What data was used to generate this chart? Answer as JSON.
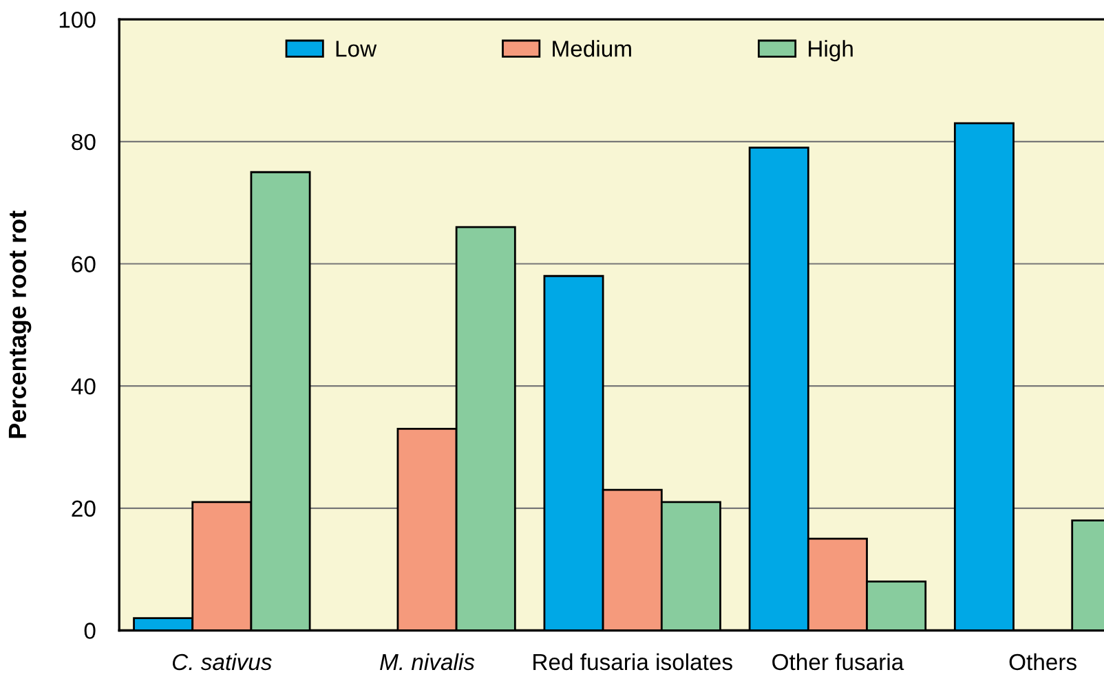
{
  "chart_data": {
    "type": "bar",
    "ylabel": "Percentage root rot",
    "categories": [
      "C. sativus",
      "M. nivalis",
      "Red fusaria isolates",
      "Other fusaria",
      "Others"
    ],
    "series": [
      {
        "name": "Low",
        "color": "#00a8e6",
        "values": [
          2,
          null,
          58,
          79,
          83
        ]
      },
      {
        "name": "Medium",
        "color": "#f59a7c",
        "values": [
          21,
          33,
          23,
          15,
          null
        ]
      },
      {
        "name": "High",
        "color": "#88cc9e",
        "values": [
          75,
          66,
          21,
          8,
          18
        ]
      }
    ],
    "ylim": [
      0,
      100
    ],
    "yticks": [
      0,
      20,
      40,
      60,
      80,
      100
    ],
    "grid": "y",
    "legend": "top"
  }
}
